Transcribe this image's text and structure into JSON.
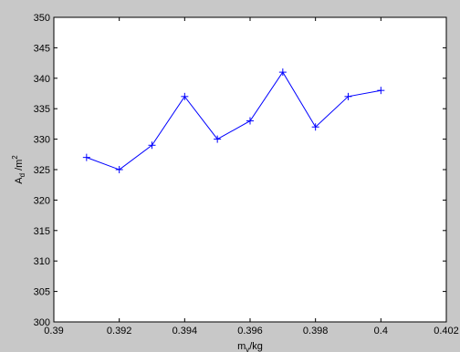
{
  "chart_data": {
    "type": "line",
    "title": "",
    "xlabel": {
      "main": "m",
      "sub": "v",
      "unit": "/kg"
    },
    "ylabel": {
      "main": "A",
      "sub": "d",
      "unit": " /m",
      "sup": "2"
    },
    "xlim": [
      0.39,
      0.402
    ],
    "ylim": [
      300,
      350
    ],
    "xticks": [
      "0.39",
      "0.392",
      "0.394",
      "0.396",
      "0.398",
      "0.4",
      "0.402"
    ],
    "yticks": [
      "300",
      "305",
      "310",
      "315",
      "320",
      "325",
      "330",
      "335",
      "340",
      "345",
      "350"
    ],
    "grid": false,
    "marker": "+",
    "line_color": "#0000ff",
    "x": [
      0.391,
      0.392,
      0.393,
      0.394,
      0.395,
      0.396,
      0.397,
      0.398,
      0.399,
      0.4
    ],
    "series": [
      {
        "values": [
          327,
          325,
          329,
          337,
          330,
          333,
          341,
          332,
          337,
          338
        ]
      }
    ]
  }
}
